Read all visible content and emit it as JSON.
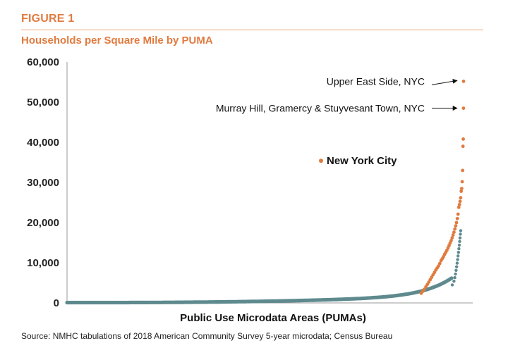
{
  "figure_label": "FIGURE 1",
  "source": "Source: NMHC tabulations of 2018 American Community Survey 5-year microdata; Census Bureau",
  "colors": {
    "accent": "#e07b3f",
    "nyc_points": "#e07b3f",
    "other_points": "#5e8a8e"
  },
  "chart_data": {
    "type": "scatter",
    "title": "Households per Square Mile by PUMA",
    "xlabel": "Public Use Microdata Areas (PUMAs)",
    "ylabel": "",
    "ylim": [
      0,
      60000
    ],
    "y_ticks": [
      "0",
      "10,000",
      "20,000",
      "30,000",
      "40,000",
      "50,000",
      "60,000"
    ],
    "y_tick_values": [
      0,
      10000,
      20000,
      30000,
      40000,
      50000,
      60000
    ],
    "x_ticks_shown": false,
    "grid": false,
    "legend": {
      "placement": "center-right",
      "entries": [
        "New York City"
      ]
    },
    "series": [
      {
        "name": "New York City",
        "color": "#e07b3f",
        "description_values": [
          55200,
          48500,
          40800,
          39000,
          33000,
          30200,
          28500,
          27800,
          26200,
          25300,
          24500,
          23800,
          22100,
          21000,
          20000,
          19200,
          18400,
          17600,
          16900,
          16200,
          15500,
          14900,
          14300,
          13700,
          13100,
          12600,
          12100,
          11500,
          11000,
          10500,
          9800,
          9200,
          8700,
          8200,
          7600,
          7000,
          6400,
          5800,
          5200,
          4600,
          4000,
          3400,
          2900,
          2400
        ]
      },
      {
        "name": "",
        "color": "#5e8a8e",
        "points_shape": "sorted ascending curve across ~2,350 PUMAs, near 0 on the left, rising to about 2,000 near the right and about 6,000 at the knee"
      }
    ],
    "annotations": [
      {
        "text": "Upper East Side, NYC",
        "y": 55200
      },
      {
        "text": "Murray Hill, Gramercy & Stuyvesant Town, NYC",
        "y": 48500
      }
    ]
  }
}
